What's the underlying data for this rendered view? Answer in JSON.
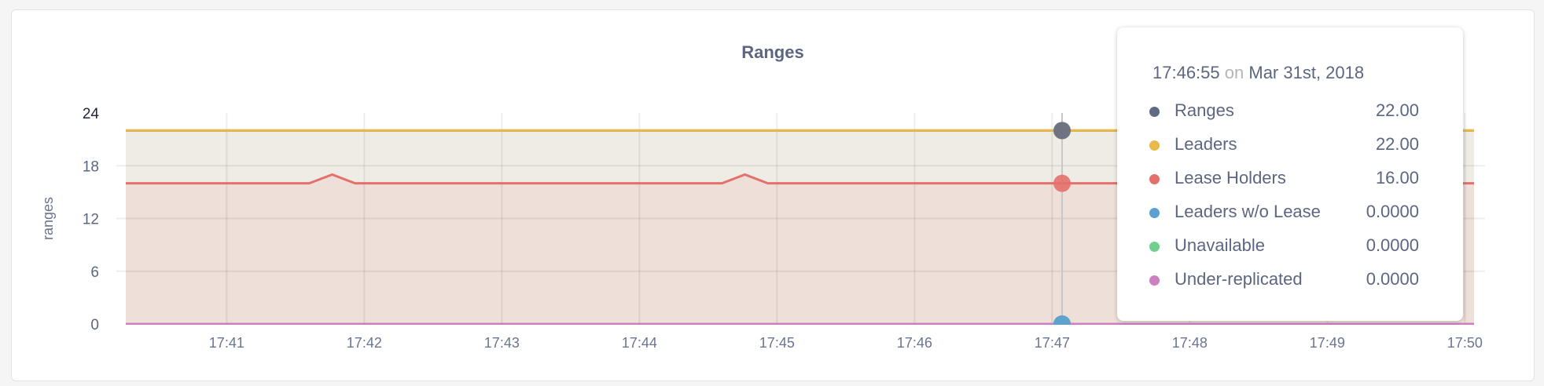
{
  "chart_data": {
    "type": "area",
    "title": "Ranges",
    "xlabel": "",
    "ylabel": "ranges",
    "ylim": [
      0,
      24
    ],
    "yticks": [
      "0",
      "6",
      "12",
      "18",
      "24"
    ],
    "xlim": [
      "17:40:16",
      "17:50:04"
    ],
    "xticks": [
      "17:41",
      "17:42",
      "17:43",
      "17:44",
      "17:45",
      "17:46",
      "17:47",
      "17:48",
      "17:49",
      "17:50"
    ],
    "grid": true,
    "legend": "none",
    "series": [
      {
        "name": "Ranges",
        "color": "#5f6b86",
        "fill": null,
        "points": [
          [
            "17:40:16",
            22
          ],
          [
            "17:50:04",
            22
          ]
        ]
      },
      {
        "name": "Leaders",
        "color": "#e9b949",
        "fill": "#efece5",
        "points": [
          [
            "17:40:16",
            22
          ],
          [
            "17:50:04",
            22
          ]
        ]
      },
      {
        "name": "Lease Holders",
        "color": "#e4706b",
        "fill": "#eedfd8",
        "points": [
          [
            "17:40:16",
            16
          ],
          [
            "17:41:36",
            16
          ],
          [
            "17:41:46",
            17
          ],
          [
            "17:41:56",
            16
          ],
          [
            "17:44:36",
            16
          ],
          [
            "17:44:46",
            17
          ],
          [
            "17:44:56",
            16
          ],
          [
            "17:50:04",
            16
          ]
        ]
      },
      {
        "name": "Leaders w/o Lease",
        "color": "#5b9fd3",
        "fill": null,
        "points": [
          [
            "17:40:16",
            0
          ],
          [
            "17:50:04",
            0
          ]
        ]
      },
      {
        "name": "Unavailable",
        "color": "#71d08f",
        "fill": null,
        "points": [
          [
            "17:40:16",
            0
          ],
          [
            "17:50:04",
            0
          ]
        ]
      },
      {
        "name": "Under-replicated",
        "color": "#cc80c0",
        "fill": null,
        "points": [
          [
            "17:40:16",
            0
          ],
          [
            "17:50:04",
            0
          ]
        ]
      }
    ],
    "hover": {
      "time": "17:46:55",
      "on": "on",
      "date": "Mar 31st, 2018",
      "rows": [
        {
          "name": "Ranges",
          "value": "22.00",
          "color": "#5f6b86"
        },
        {
          "name": "Leaders",
          "value": "22.00",
          "color": "#e9b949"
        },
        {
          "name": "Lease Holders",
          "value": "16.00",
          "color": "#e4706b"
        },
        {
          "name": "Leaders w/o Lease",
          "value": "0.0000",
          "color": "#5b9fd3"
        },
        {
          "name": "Unavailable",
          "value": "0.0000",
          "color": "#71d08f"
        },
        {
          "name": "Under-replicated",
          "value": "0.0000",
          "color": "#cc80c0"
        }
      ]
    }
  }
}
